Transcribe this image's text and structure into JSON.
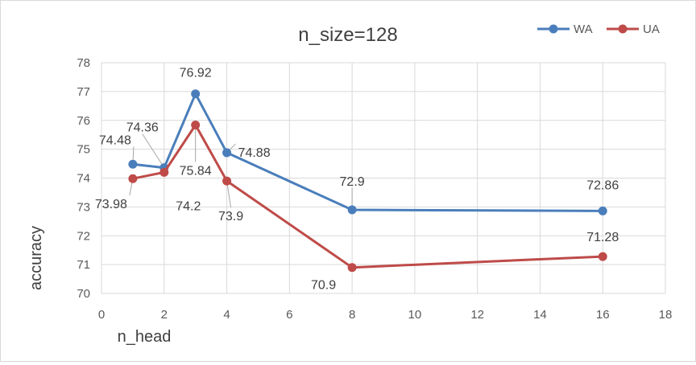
{
  "chart_data": {
    "type": "line",
    "title": "n_size=128",
    "xlabel": "n_head",
    "ylabel": "accuracy",
    "xlim": [
      0,
      18
    ],
    "ylim": [
      70,
      78
    ],
    "x_ticks": [
      "0",
      "2",
      "4",
      "6",
      "8",
      "10",
      "12",
      "14",
      "16",
      "18"
    ],
    "y_ticks": [
      "70",
      "71",
      "72",
      "73",
      "74",
      "75",
      "76",
      "77",
      "78"
    ],
    "grid": true,
    "legend_position": "top-right",
    "x": [
      1,
      2,
      3,
      4,
      8,
      16
    ],
    "series": [
      {
        "name": "WA",
        "color": "#4a7ebb",
        "values": [
          74.48,
          74.36,
          76.92,
          74.88,
          72.9,
          72.86
        ],
        "labels": [
          "74.48",
          "74.36",
          "76.92",
          "74.88",
          "72.9",
          "72.86"
        ]
      },
      {
        "name": "UA",
        "color": "#be4b48",
        "values": [
          73.98,
          74.2,
          75.84,
          73.9,
          70.9,
          71.28
        ],
        "labels": [
          "73.98",
          "74.2",
          "75.84",
          "73.9",
          "70.9",
          "71.28"
        ]
      }
    ]
  }
}
